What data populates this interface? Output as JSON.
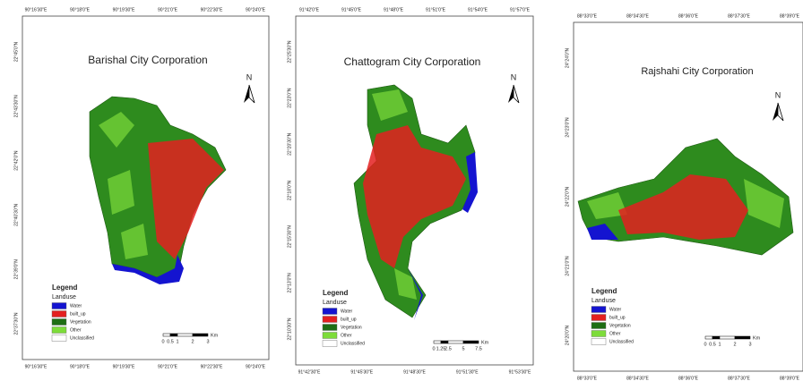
{
  "panels": [
    {
      "title": "Barishal City Corporation",
      "north": "N",
      "top_labels": [
        "90°16'30\"E",
        "90°18'0\"E",
        "90°19'30\"E",
        "90°21'0\"E",
        "90°22'30\"E",
        "90°24'0\"E"
      ],
      "bottom_labels": [
        "90°16'30\"E",
        "90°18'0\"E",
        "90°19'30\"E",
        "90°21'0\"E",
        "90°22'30\"E",
        "90°24'0\"E"
      ],
      "left_labels": [
        "22°45'0\"N",
        "22°43'30\"N",
        "22°42'0\"N",
        "22°40'30\"N",
        "22°39'0\"N",
        "22°37'30\"N"
      ],
      "legend": {
        "title": "Legend",
        "subtitle": "Landuse",
        "items": [
          "Water",
          "built_up",
          "Vegetation",
          "Other",
          "Unclassified"
        ]
      },
      "scale": {
        "ticks": [
          "0",
          "0.5",
          "1",
          "2",
          "3"
        ],
        "unit": "Km"
      }
    },
    {
      "title": "Chattogram City Corporation",
      "north": "N",
      "top_labels": [
        "91°42'0\"E",
        "91°45'0\"E",
        "91°48'0\"E",
        "91°51'0\"E",
        "91°54'0\"E",
        "91°57'0\"E"
      ],
      "bottom_labels": [
        "91°42'30\"E",
        "91°45'30\"E",
        "91°48'30\"E",
        "91°51'30\"E",
        "91°53'30\"E"
      ],
      "left_labels": [
        "22°25'30\"N",
        "22°23'0\"N",
        "22°20'30\"N",
        "22°18'0\"N",
        "22°15'30\"N",
        "22°13'0\"N",
        "22°10'30\"N"
      ],
      "legend": {
        "title": "Legend",
        "subtitle": "Landuse",
        "items": [
          "Water",
          "built_up",
          "Vegetation",
          "Other",
          "Unclassified"
        ]
      },
      "scale": {
        "ticks": [
          "0",
          "1.25",
          "2.5",
          "5",
          "7.5"
        ],
        "unit": "Km"
      }
    },
    {
      "title": "Rajshahi City Corporation",
      "north": "N",
      "top_labels": [
        "88°33'0\"E",
        "88°34'30\"E",
        "88°36'0\"E",
        "88°37'30\"E",
        "88°39'0\"E"
      ],
      "bottom_labels": [
        "88°33'0\"E",
        "88°34'30\"E",
        "88°36'0\"E",
        "88°37'30\"E",
        "88°39'0\"E"
      ],
      "left_labels": [
        "24°24'0\"N",
        "24°23'0\"N",
        "24°22'0\"N",
        "24°21'0\"N",
        "24°20'0\"N"
      ],
      "legend": {
        "title": "Legend",
        "subtitle": "Landuse",
        "items": [
          "Water",
          "built_up",
          "Vegetation",
          "Other",
          "Unclassified"
        ]
      },
      "scale": {
        "ticks": [
          "0",
          "0.5",
          "1",
          "2",
          "3"
        ],
        "unit": "Km"
      }
    }
  ]
}
